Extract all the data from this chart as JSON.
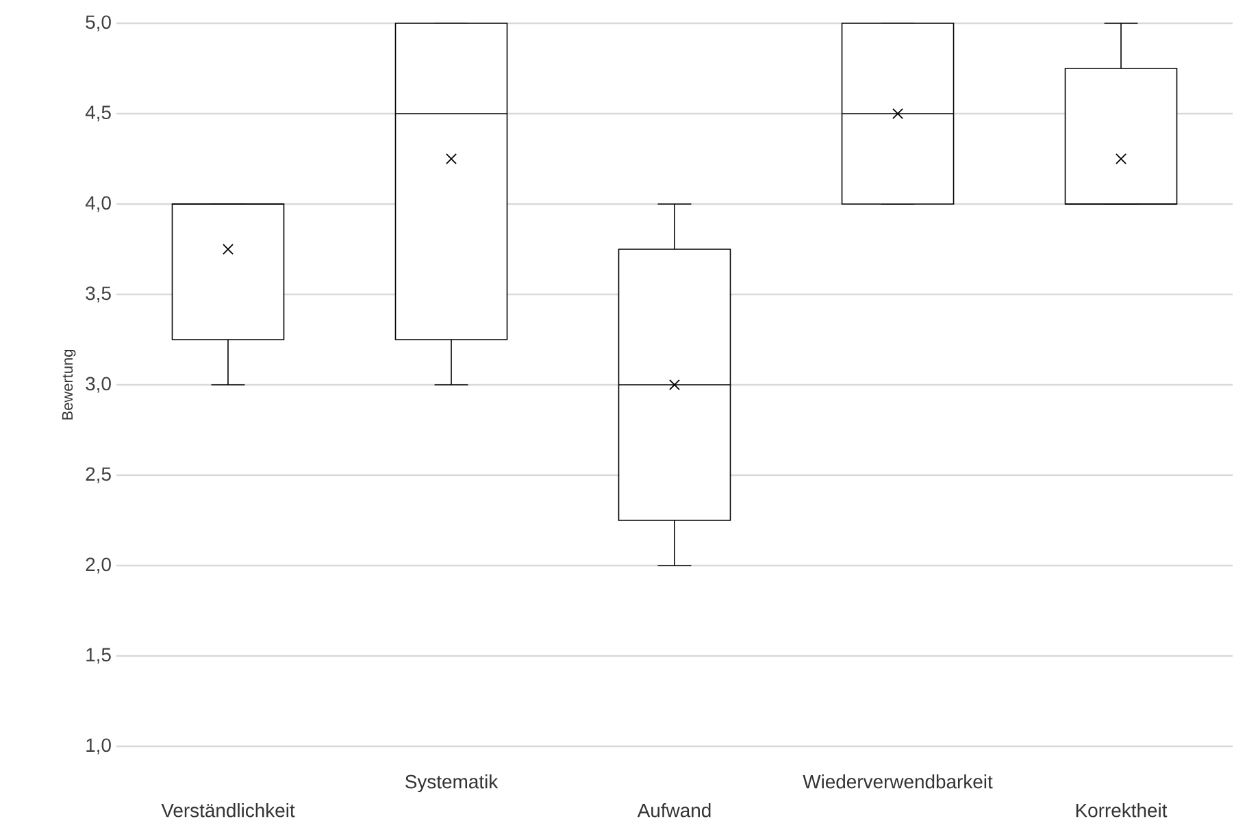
{
  "chart_data": {
    "type": "box",
    "ylabel": "Bewertung",
    "categories": [
      "Verständlichkeit",
      "Systematik",
      "Aufwand",
      "Wiederverwendbarkeit",
      "Korrektheit"
    ],
    "boxes": [
      {
        "low": 3,
        "q1": 3.25,
        "median": 4,
        "q3": 4,
        "high": 4,
        "mean": 3.75
      },
      {
        "low": 3,
        "q1": 3.25,
        "median": 4.5,
        "q3": 5,
        "high": 5,
        "mean": 4.25
      },
      {
        "low": 2,
        "q1": 2.25,
        "median": 3,
        "q3": 3.75,
        "high": 4,
        "mean": 3
      },
      {
        "low": 4,
        "q1": 4,
        "median": 4.5,
        "q3": 5,
        "high": 5,
        "mean": 4.5
      },
      {
        "low": 4,
        "q1": 4,
        "median": 4,
        "q3": 4.75,
        "high": 5,
        "mean": 4.25
      }
    ],
    "ylim": [
      1,
      5
    ],
    "yticks": [
      {
        "value": 1,
        "label": "1,0"
      },
      {
        "value": 1.5,
        "label": "1,5"
      },
      {
        "value": 2,
        "label": "2,0"
      },
      {
        "value": 2.5,
        "label": "2,5"
      },
      {
        "value": 3,
        "label": "3,0"
      },
      {
        "value": 3.5,
        "label": "3,5"
      },
      {
        "value": 4,
        "label": "4,0"
      },
      {
        "value": 4.5,
        "label": "4,5"
      },
      {
        "value": 5,
        "label": "5,0"
      }
    ],
    "grid": "y"
  }
}
